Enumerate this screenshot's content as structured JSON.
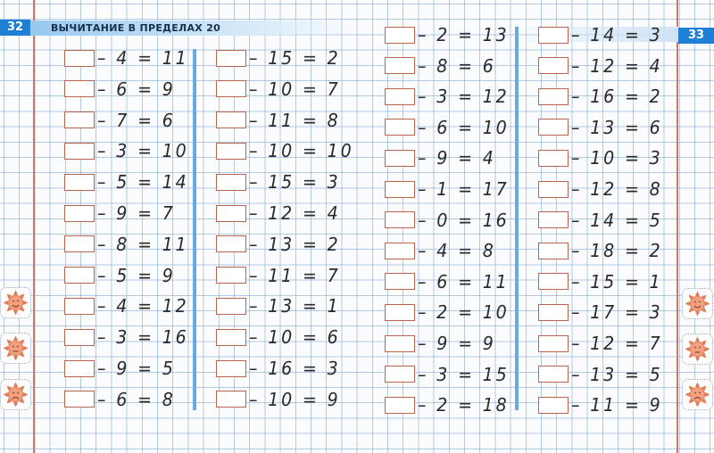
{
  "header": {
    "left_page_number": "32",
    "title": "ВЫЧИТАНИЕ В ПРЕДЕЛАХ 20",
    "right_page_number": "33"
  },
  "columns": [
    [
      "– 4 = 11",
      "– 6 = 9",
      "– 7 = 6",
      "– 3 = 10",
      "– 5 = 14",
      "– 9 = 7",
      "– 8 = 11",
      "– 5 = 9",
      "– 4 = 12",
      "– 3 = 16",
      "– 9 = 5",
      "– 6 = 8"
    ],
    [
      "– 15 = 2",
      "– 10 = 7",
      "– 11 = 8",
      "– 10 = 10",
      "– 15 = 3",
      "– 12 = 4",
      "– 13 = 2",
      "– 11 = 7",
      "– 13 = 1",
      "– 10 = 6",
      "– 16 = 3",
      "– 10 = 9"
    ],
    [
      "– 2 = 13",
      "– 8 = 6",
      "– 3 = 12",
      "– 6 = 10",
      "– 9 = 4",
      "– 1 = 17",
      "– 0 = 16",
      "– 4 = 8",
      "– 6 = 11",
      "– 2 = 10",
      "– 9 = 9",
      "– 3 = 15",
      "– 2 = 18"
    ],
    [
      "– 14 = 3",
      "– 12 = 4",
      "– 16 = 2",
      "– 13 = 6",
      "– 10 = 3",
      "– 12 = 8",
      "– 14 = 5",
      "– 18 = 2",
      "– 15 = 1",
      "– 17 = 3",
      "– 12 = 7",
      "– 13 = 5",
      "– 11 = 9"
    ]
  ],
  "self_assessment_icons": [
    "sun-happy-icon",
    "sun-neutral-icon",
    "sun-sad-icon"
  ],
  "colors": {
    "accent": "#1f7fd4",
    "box_border": "#b8644f",
    "margin": "#c8776a",
    "divider": "#6aa8e0",
    "sun": "#e07a52"
  }
}
